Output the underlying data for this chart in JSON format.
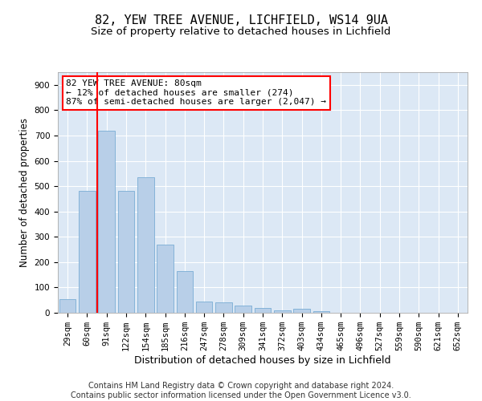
{
  "title1": "82, YEW TREE AVENUE, LICHFIELD, WS14 9UA",
  "title2": "Size of property relative to detached houses in Lichfield",
  "xlabel": "Distribution of detached houses by size in Lichfield",
  "ylabel": "Number of detached properties",
  "categories": [
    "29sqm",
    "60sqm",
    "91sqm",
    "122sqm",
    "154sqm",
    "185sqm",
    "216sqm",
    "247sqm",
    "278sqm",
    "309sqm",
    "341sqm",
    "372sqm",
    "403sqm",
    "434sqm",
    "465sqm",
    "496sqm",
    "527sqm",
    "559sqm",
    "590sqm",
    "621sqm",
    "652sqm"
  ],
  "values": [
    55,
    480,
    720,
    480,
    535,
    270,
    165,
    45,
    40,
    30,
    20,
    10,
    15,
    5,
    0,
    0,
    0,
    0,
    0,
    0,
    0
  ],
  "bar_color": "#b8cfe8",
  "bar_edge_color": "#7aadd4",
  "vline_color": "red",
  "annotation_text": "82 YEW TREE AVENUE: 80sqm\n← 12% of detached houses are smaller (274)\n87% of semi-detached houses are larger (2,047) →",
  "annotation_box_color": "white",
  "annotation_box_edge_color": "red",
  "ylim": [
    0,
    950
  ],
  "yticks": [
    0,
    100,
    200,
    300,
    400,
    500,
    600,
    700,
    800,
    900
  ],
  "footnote": "Contains HM Land Registry data © Crown copyright and database right 2024.\nContains public sector information licensed under the Open Government Licence v3.0.",
  "plot_bg_color": "#dce8f5",
  "title1_fontsize": 11,
  "title2_fontsize": 9.5,
  "xlabel_fontsize": 9,
  "ylabel_fontsize": 8.5,
  "tick_fontsize": 7.5,
  "footnote_fontsize": 7,
  "ann_fontsize": 8
}
